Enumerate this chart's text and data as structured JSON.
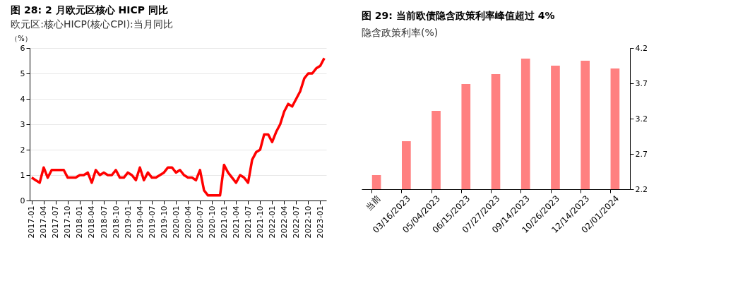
{
  "chart_data": [
    {
      "type": "line",
      "title": "图 28: 2 月欧元区核心 HICP 同比",
      "subtitle": "欧元区:核心HICP(核心CPI):当月同比",
      "ylabel": "（%）",
      "categories": [
        "2017-01",
        null,
        null,
        "2017-04",
        null,
        null,
        "2017-07",
        null,
        null,
        "2017-10",
        null,
        null,
        "2018-01",
        null,
        null,
        "2018-04",
        null,
        null,
        "2018-07",
        null,
        null,
        "2018-10",
        null,
        null,
        "2019-01",
        null,
        null,
        "2019-04",
        null,
        null,
        "2019-07",
        null,
        null,
        "2019-10",
        null,
        null,
        "2020-01",
        null,
        null,
        "2020-04",
        null,
        null,
        "2020-07",
        null,
        null,
        "2020-10",
        null,
        null,
        "2021-01",
        null,
        null,
        "2021-04",
        null,
        null,
        "2021-07",
        null,
        null,
        "2021-10",
        null,
        null,
        "2022-01",
        null,
        null,
        "2022-04",
        null,
        null,
        "2022-07",
        null,
        null,
        "2022-10",
        null,
        null,
        "2023-01",
        null
      ],
      "series": [
        {
          "color": "#ff0000",
          "values": [
            0.9,
            0.8,
            0.7,
            1.3,
            0.9,
            1.2,
            1.2,
            1.2,
            1.2,
            0.9,
            0.9,
            0.9,
            1.0,
            1.0,
            1.1,
            0.7,
            1.2,
            1.0,
            1.1,
            1.0,
            1.0,
            1.2,
            0.9,
            0.9,
            1.1,
            1.0,
            0.8,
            1.3,
            0.8,
            1.1,
            0.9,
            0.9,
            1.0,
            1.1,
            1.3,
            1.3,
            1.1,
            1.2,
            1.0,
            0.9,
            0.9,
            0.8,
            1.2,
            0.4,
            0.2,
            0.2,
            0.2,
            0.2,
            1.4,
            1.1,
            0.9,
            0.7,
            1.0,
            0.9,
            0.7,
            1.6,
            1.9,
            2.0,
            2.6,
            2.6,
            2.3,
            2.7,
            3.0,
            3.5,
            3.8,
            3.7,
            4.0,
            4.3,
            4.8,
            5.0,
            5.0,
            5.2,
            5.3,
            5.6
          ]
        }
      ],
      "ylim": [
        0,
        6
      ],
      "yticks": [
        0,
        1,
        2,
        3,
        4,
        5,
        6
      ],
      "grid": "y",
      "line_style": "solid",
      "marker": "none"
    },
    {
      "type": "bar",
      "title": "图 29: 当前欧债隐含政策利率峰值超过 4%",
      "subtitle": "隐含政策利率(%)",
      "categories": [
        "当前",
        "03/16/2023",
        "05/04/2023",
        "06/15/2023",
        "07/27/2023",
        "09/14/2023",
        "10/26/2023",
        "12/14/2023",
        "02/01/2024"
      ],
      "series": [
        {
          "color": "#ff8080",
          "values": [
            2.4,
            2.88,
            3.31,
            3.69,
            3.83,
            4.05,
            3.95,
            4.02,
            3.91
          ]
        }
      ],
      "ylim": [
        2.2,
        4.2
      ],
      "yticks": [
        2.2,
        2.7,
        3.2,
        3.7,
        4.2
      ],
      "grid": false
    }
  ]
}
